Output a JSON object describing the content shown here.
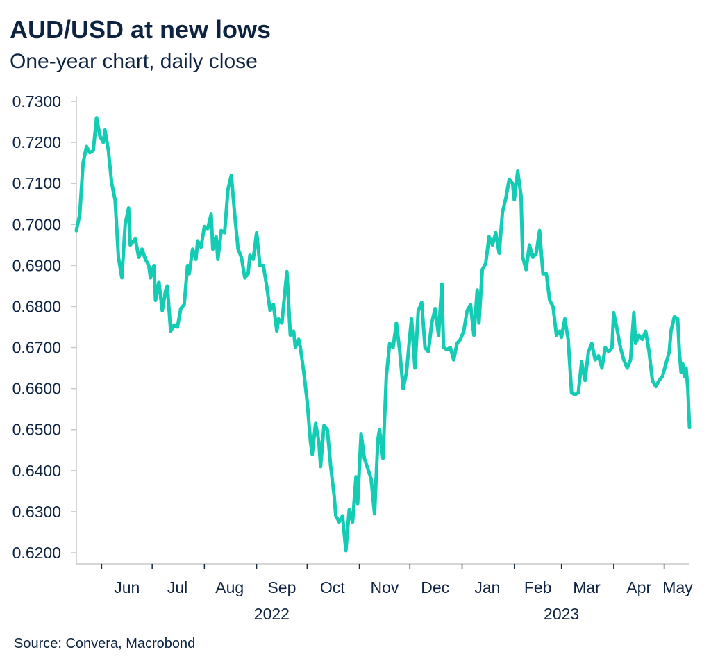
{
  "header": {
    "title": "AUD/USD at new lows",
    "subtitle": "One-year chart, daily close"
  },
  "footer": {
    "source": "Source: Convera, Macrobond"
  },
  "chart_data": {
    "type": "line",
    "title": "AUD/USD at new lows",
    "subtitle": "One-year chart, daily close",
    "xlabel": "",
    "ylabel": "",
    "ylim": [
      0.62,
      0.73
    ],
    "y_ticks": [
      "0.7300",
      "0.7200",
      "0.7100",
      "0.7000",
      "0.6900",
      "0.6800",
      "0.6700",
      "0.6600",
      "0.6500",
      "0.6400",
      "0.6300",
      "0.6200"
    ],
    "y_tick_values": [
      0.73,
      0.72,
      0.71,
      0.7,
      0.69,
      0.68,
      0.67,
      0.66,
      0.65,
      0.64,
      0.63,
      0.62
    ],
    "x_start": "2022-05-17",
    "x_end": "2023-05-16",
    "x_month_ticks": [
      "2022-06-01",
      "2022-07-01",
      "2022-08-01",
      "2022-09-01",
      "2022-10-01",
      "2022-11-01",
      "2022-12-01",
      "2023-01-01",
      "2023-02-01",
      "2023-03-01",
      "2023-04-01",
      "2023-05-01"
    ],
    "x_labels": [
      {
        "label": "Jun",
        "date": "2022-06-16"
      },
      {
        "label": "Jul",
        "date": "2022-07-16"
      },
      {
        "label": "Aug",
        "date": "2022-08-16"
      },
      {
        "label": "Sep",
        "date": "2022-09-16"
      },
      {
        "label": "Oct",
        "date": "2022-10-16"
      },
      {
        "label": "Nov",
        "date": "2022-11-16"
      },
      {
        "label": "Dec",
        "date": "2022-12-16"
      },
      {
        "label": "Jan",
        "date": "2023-01-16"
      },
      {
        "label": "Feb",
        "date": "2023-02-15"
      },
      {
        "label": "Mar",
        "date": "2023-03-16"
      },
      {
        "label": "Apr",
        "date": "2023-04-16"
      },
      {
        "label": "May",
        "date": "2023-05-09"
      }
    ],
    "year_labels": [
      {
        "label": "2022",
        "date": "2022-09-10"
      },
      {
        "label": "2023",
        "date": "2023-03-01"
      }
    ],
    "grid": false,
    "legend": "none",
    "series": [
      {
        "color": "#14ccb4",
        "points": [
          [
            "2022-05-17",
            0.6985
          ],
          [
            "2022-05-19",
            0.7025
          ],
          [
            "2022-05-21",
            0.715
          ],
          [
            "2022-05-23",
            0.719
          ],
          [
            "2022-05-25",
            0.7175
          ],
          [
            "2022-05-27",
            0.718
          ],
          [
            "2022-05-29",
            0.726
          ],
          [
            "2022-05-31",
            0.7215
          ],
          [
            "2022-06-02",
            0.72
          ],
          [
            "2022-06-03",
            0.723
          ],
          [
            "2022-06-05",
            0.718
          ],
          [
            "2022-06-07",
            0.71
          ],
          [
            "2022-06-09",
            0.706
          ],
          [
            "2022-06-11",
            0.692
          ],
          [
            "2022-06-13",
            0.687
          ],
          [
            "2022-06-15",
            0.7
          ],
          [
            "2022-06-17",
            0.704
          ],
          [
            "2022-06-18",
            0.695
          ],
          [
            "2022-06-21",
            0.6965
          ],
          [
            "2022-06-23",
            0.692
          ],
          [
            "2022-06-25",
            0.694
          ],
          [
            "2022-06-27",
            0.6915
          ],
          [
            "2022-06-29",
            0.69
          ],
          [
            "2022-06-30",
            0.687
          ],
          [
            "2022-07-02",
            0.69
          ],
          [
            "2022-07-03",
            0.6815
          ],
          [
            "2022-07-05",
            0.686
          ],
          [
            "2022-07-07",
            0.679
          ],
          [
            "2022-07-09",
            0.684
          ],
          [
            "2022-07-10",
            0.685
          ],
          [
            "2022-07-12",
            0.674
          ],
          [
            "2022-07-14",
            0.6755
          ],
          [
            "2022-07-16",
            0.675
          ],
          [
            "2022-07-18",
            0.6795
          ],
          [
            "2022-07-20",
            0.6805
          ],
          [
            "2022-07-22",
            0.69
          ],
          [
            "2022-07-23",
            0.688
          ],
          [
            "2022-07-25",
            0.694
          ],
          [
            "2022-07-27",
            0.6915
          ],
          [
            "2022-07-28",
            0.696
          ],
          [
            "2022-07-30",
            0.6945
          ],
          [
            "2022-08-01",
            0.6995
          ],
          [
            "2022-08-03",
            0.699
          ],
          [
            "2022-08-05",
            0.7025
          ],
          [
            "2022-08-06",
            0.694
          ],
          [
            "2022-08-08",
            0.697
          ],
          [
            "2022-08-09",
            0.6915
          ],
          [
            "2022-08-11",
            0.6985
          ],
          [
            "2022-08-13",
            0.698
          ],
          [
            "2022-08-15",
            0.7085
          ],
          [
            "2022-08-17",
            0.712
          ],
          [
            "2022-08-19",
            0.7025
          ],
          [
            "2022-08-21",
            0.694
          ],
          [
            "2022-08-23",
            0.692
          ],
          [
            "2022-08-25",
            0.687
          ],
          [
            "2022-08-27",
            0.688
          ],
          [
            "2022-08-28",
            0.6925
          ],
          [
            "2022-08-30",
            0.6915
          ],
          [
            "2022-09-01",
            0.698
          ],
          [
            "2022-09-03",
            0.69
          ],
          [
            "2022-09-05",
            0.69
          ],
          [
            "2022-09-07",
            0.685
          ],
          [
            "2022-09-09",
            0.679
          ],
          [
            "2022-09-11",
            0.6805
          ],
          [
            "2022-09-13",
            0.674
          ],
          [
            "2022-09-14",
            0.677
          ],
          [
            "2022-09-16",
            0.676
          ],
          [
            "2022-09-18",
            0.6845
          ],
          [
            "2022-09-19",
            0.6885
          ],
          [
            "2022-09-21",
            0.673
          ],
          [
            "2022-09-23",
            0.674
          ],
          [
            "2022-09-24",
            0.67
          ],
          [
            "2022-09-26",
            0.672
          ],
          [
            "2022-09-27",
            0.67
          ],
          [
            "2022-09-29",
            0.664
          ],
          [
            "2022-10-01",
            0.657
          ],
          [
            "2022-10-03",
            0.647
          ],
          [
            "2022-10-04",
            0.644
          ],
          [
            "2022-10-06",
            0.6515
          ],
          [
            "2022-10-08",
            0.647
          ],
          [
            "2022-10-09",
            0.641
          ],
          [
            "2022-10-11",
            0.651
          ],
          [
            "2022-10-13",
            0.65
          ],
          [
            "2022-10-15",
            0.641
          ],
          [
            "2022-10-17",
            0.634
          ],
          [
            "2022-10-18",
            0.629
          ],
          [
            "2022-10-20",
            0.6275
          ],
          [
            "2022-10-22",
            0.629
          ],
          [
            "2022-10-24",
            0.6205
          ],
          [
            "2022-10-26",
            0.6305
          ],
          [
            "2022-10-28",
            0.6275
          ],
          [
            "2022-10-30",
            0.6385
          ],
          [
            "2022-10-31",
            0.632
          ],
          [
            "2022-11-02",
            0.649
          ],
          [
            "2022-11-04",
            0.643
          ],
          [
            "2022-11-06",
            0.6405
          ],
          [
            "2022-11-08",
            0.638
          ],
          [
            "2022-11-10",
            0.6295
          ],
          [
            "2022-11-12",
            0.6475
          ],
          [
            "2022-11-13",
            0.65
          ],
          [
            "2022-11-15",
            0.643
          ],
          [
            "2022-11-17",
            0.663
          ],
          [
            "2022-11-19",
            0.671
          ],
          [
            "2022-11-21",
            0.67
          ],
          [
            "2022-11-23",
            0.676
          ],
          [
            "2022-11-25",
            0.669
          ],
          [
            "2022-11-27",
            0.66
          ],
          [
            "2022-11-29",
            0.664
          ],
          [
            "2022-12-01",
            0.673
          ],
          [
            "2022-12-02",
            0.677
          ],
          [
            "2022-12-04",
            0.665
          ],
          [
            "2022-12-06",
            0.679
          ],
          [
            "2022-12-08",
            0.681
          ],
          [
            "2022-12-10",
            0.67
          ],
          [
            "2022-12-12",
            0.669
          ],
          [
            "2022-12-14",
            0.676
          ],
          [
            "2022-12-16",
            0.6795
          ],
          [
            "2022-12-18",
            0.673
          ],
          [
            "2022-12-20",
            0.6855
          ],
          [
            "2022-12-21",
            0.67
          ],
          [
            "2022-12-23",
            0.6695
          ],
          [
            "2022-12-25",
            0.67
          ],
          [
            "2022-12-27",
            0.667
          ],
          [
            "2022-12-29",
            0.671
          ],
          [
            "2022-12-31",
            0.672
          ],
          [
            "2023-01-02",
            0.674
          ],
          [
            "2023-01-04",
            0.679
          ],
          [
            "2023-01-06",
            0.6805
          ],
          [
            "2023-01-08",
            0.673
          ],
          [
            "2023-01-10",
            0.684
          ],
          [
            "2023-01-11",
            0.676
          ],
          [
            "2023-01-13",
            0.689
          ],
          [
            "2023-01-15",
            0.6905
          ],
          [
            "2023-01-17",
            0.697
          ],
          [
            "2023-01-19",
            0.695
          ],
          [
            "2023-01-21",
            0.698
          ],
          [
            "2023-01-23",
            0.693
          ],
          [
            "2023-01-25",
            0.703
          ],
          [
            "2023-01-27",
            0.7065
          ],
          [
            "2023-01-29",
            0.711
          ],
          [
            "2023-01-31",
            0.71
          ],
          [
            "2023-02-01",
            0.706
          ],
          [
            "2023-02-03",
            0.713
          ],
          [
            "2023-02-05",
            0.707
          ],
          [
            "2023-02-06",
            0.692
          ],
          [
            "2023-02-08",
            0.689
          ],
          [
            "2023-02-10",
            0.695
          ],
          [
            "2023-02-12",
            0.692
          ],
          [
            "2023-02-14",
            0.693
          ],
          [
            "2023-02-16",
            0.6985
          ],
          [
            "2023-02-18",
            0.688
          ],
          [
            "2023-02-20",
            0.688
          ],
          [
            "2023-02-22",
            0.6815
          ],
          [
            "2023-02-24",
            0.68
          ],
          [
            "2023-02-26",
            0.673
          ],
          [
            "2023-02-28",
            0.674
          ],
          [
            "2023-03-01",
            0.6725
          ],
          [
            "2023-03-03",
            0.677
          ],
          [
            "2023-03-05",
            0.672
          ],
          [
            "2023-03-07",
            0.659
          ],
          [
            "2023-03-09",
            0.6585
          ],
          [
            "2023-03-11",
            0.659
          ],
          [
            "2023-03-13",
            0.6665
          ],
          [
            "2023-03-15",
            0.662
          ],
          [
            "2023-03-17",
            0.669
          ],
          [
            "2023-03-19",
            0.671
          ],
          [
            "2023-03-21",
            0.667
          ],
          [
            "2023-03-23",
            0.668
          ],
          [
            "2023-03-25",
            0.665
          ],
          [
            "2023-03-27",
            0.67
          ],
          [
            "2023-03-29",
            0.669
          ],
          [
            "2023-03-31",
            0.67
          ],
          [
            "2023-04-01",
            0.6785
          ],
          [
            "2023-04-03",
            0.6745
          ],
          [
            "2023-04-05",
            0.67
          ],
          [
            "2023-04-07",
            0.667
          ],
          [
            "2023-04-09",
            0.665
          ],
          [
            "2023-04-11",
            0.667
          ],
          [
            "2023-04-13",
            0.6785
          ],
          [
            "2023-04-14",
            0.671
          ],
          [
            "2023-04-16",
            0.673
          ],
          [
            "2023-04-18",
            0.672
          ],
          [
            "2023-04-20",
            0.674
          ],
          [
            "2023-04-22",
            0.669
          ],
          [
            "2023-04-24",
            0.662
          ],
          [
            "2023-04-26",
            0.6605
          ],
          [
            "2023-04-28",
            0.662
          ],
          [
            "2023-04-30",
            0.663
          ],
          [
            "2023-05-02",
            0.666
          ],
          [
            "2023-05-04",
            0.669
          ],
          [
            "2023-05-05",
            0.674
          ],
          [
            "2023-05-07",
            0.6775
          ],
          [
            "2023-05-09",
            0.677
          ],
          [
            "2023-05-10",
            0.669
          ],
          [
            "2023-05-11",
            0.664
          ],
          [
            "2023-05-12",
            0.666
          ],
          [
            "2023-05-13",
            0.663
          ],
          [
            "2023-05-14",
            0.665
          ],
          [
            "2023-05-15",
            0.66
          ],
          [
            "2023-05-16",
            0.6505
          ]
        ]
      }
    ]
  }
}
